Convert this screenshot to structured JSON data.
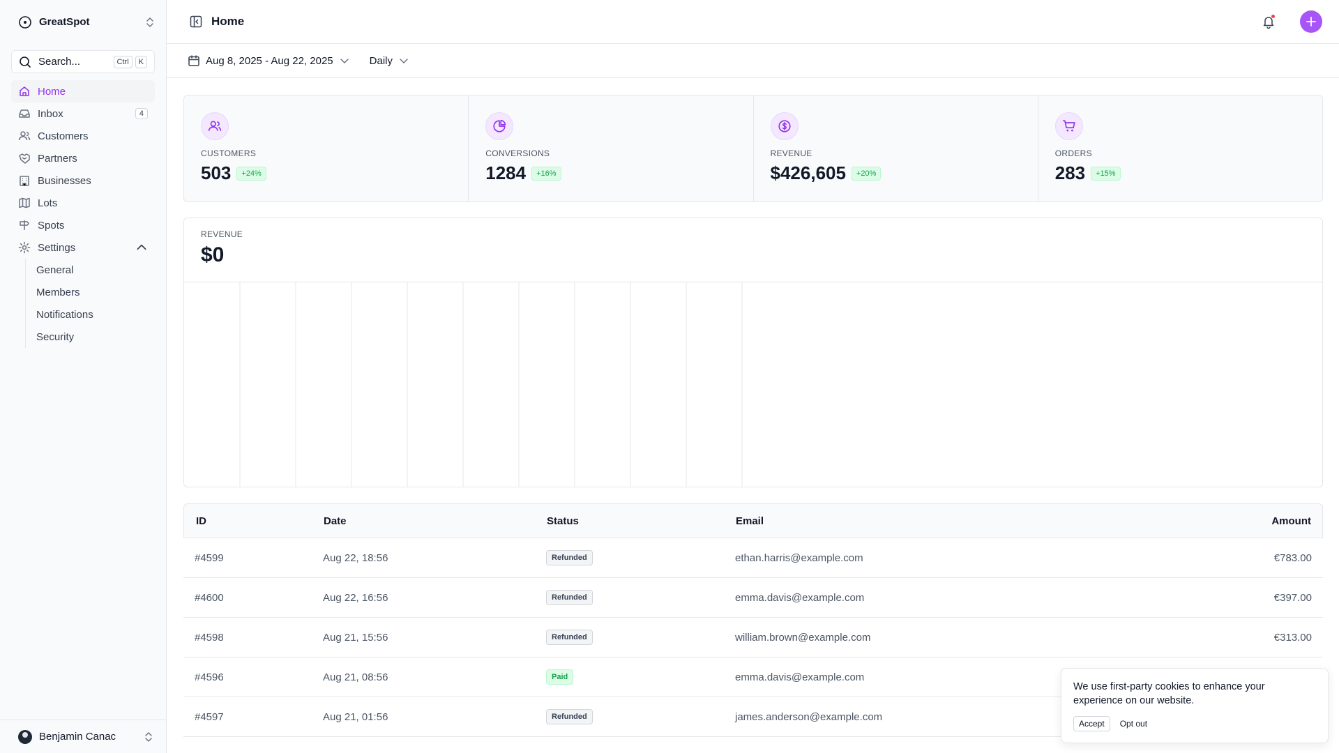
{
  "brand": {
    "name": "GreatSpot"
  },
  "search": {
    "label": "Search...",
    "kbd1": "Ctrl",
    "kbd2": "K"
  },
  "nav": {
    "items": [
      {
        "label": "Home",
        "icon": "house-icon"
      },
      {
        "label": "Inbox",
        "icon": "inbox-icon",
        "badge": "4"
      },
      {
        "label": "Customers",
        "icon": "users-icon"
      },
      {
        "label": "Partners",
        "icon": "handshake-icon"
      },
      {
        "label": "Businesses",
        "icon": "building-icon"
      },
      {
        "label": "Lots",
        "icon": "map-icon"
      },
      {
        "label": "Spots",
        "icon": "signpost-icon"
      },
      {
        "label": "Settings",
        "icon": "gear-icon"
      }
    ],
    "settings_sub": [
      "General",
      "Members",
      "Notifications",
      "Security"
    ]
  },
  "user": {
    "name": "Benjamin Canac"
  },
  "header": {
    "title": "Home"
  },
  "filters": {
    "date_range": "Aug 8, 2025 - Aug 22, 2025",
    "period": "Daily"
  },
  "stats": [
    {
      "label": "CUSTOMERS",
      "value": "503",
      "delta": "+24%",
      "icon": "users-icon"
    },
    {
      "label": "CONVERSIONS",
      "value": "1284",
      "delta": "+16%",
      "icon": "pie-chart-icon"
    },
    {
      "label": "REVENUE",
      "value": "$426,605",
      "delta": "+20%",
      "icon": "dollar-circle-icon"
    },
    {
      "label": "ORDERS",
      "value": "283",
      "delta": "+15%",
      "icon": "cart-icon"
    }
  ],
  "revenue": {
    "label": "REVENUE",
    "value": "$0"
  },
  "colors": {
    "accent": "#a855f7",
    "accent_text": "#9333ea",
    "success": "#16a34a",
    "notify": "#ef4444"
  },
  "table": {
    "headers": [
      "ID",
      "Date",
      "Status",
      "Email",
      "Amount"
    ],
    "rows": [
      {
        "id": "#4599",
        "date": "Aug 22, 18:56",
        "status": "Refunded",
        "email": "ethan.harris@example.com",
        "amount": "€783.00"
      },
      {
        "id": "#4600",
        "date": "Aug 22, 16:56",
        "status": "Refunded",
        "email": "emma.davis@example.com",
        "amount": "€397.00"
      },
      {
        "id": "#4598",
        "date": "Aug 21, 15:56",
        "status": "Refunded",
        "email": "william.brown@example.com",
        "amount": "€313.00"
      },
      {
        "id": "#4596",
        "date": "Aug 21, 08:56",
        "status": "Paid",
        "email": "emma.davis@example.com",
        "amount": ""
      },
      {
        "id": "#4597",
        "date": "Aug 21, 01:56",
        "status": "Refunded",
        "email": "james.anderson@example.com",
        "amount": ""
      }
    ]
  },
  "cookie": {
    "text": "We use first-party cookies to enhance your experience on our website.",
    "accept": "Accept",
    "optout": "Opt out"
  }
}
